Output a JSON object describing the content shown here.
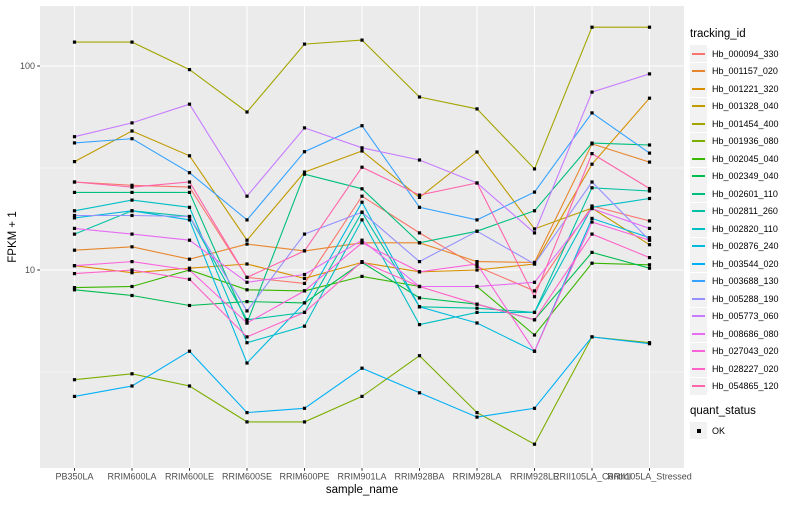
{
  "chart_data": {
    "type": "line",
    "title": "",
    "xlabel": "sample_name",
    "ylabel": "FPKM + 1",
    "y_scale": "log10",
    "ylim": [
      1.07,
      196
    ],
    "y_major_ticks": [
      {
        "value": 10,
        "label": "10"
      },
      {
        "value": 100,
        "label": "100"
      }
    ],
    "y_minor_ticks": [
      3.1623,
      31.623
    ],
    "grid": "on",
    "legend_position": "right",
    "marker": {
      "shape": "square",
      "color": "#000000"
    },
    "panel_background": "#EBEBEB",
    "grid_color": "#FFFFFF",
    "axis_text_color": "#4D4D4D",
    "categories": [
      "PB350LA",
      "RRIM600LA",
      "RRIM600LE",
      "RRIM600SE",
      "RRIM600PE",
      "RRIM901LA",
      "RRIM928BA",
      "RRIM928LA",
      "RRIM928LE",
      "RRII105LA_Control",
      "RRII105LA_Stressed"
    ],
    "legend": {
      "tracking_id_title": "tracking_id",
      "quant_status_title": "quant_status",
      "quant_status_items": [
        "OK"
      ]
    },
    "series": [
      {
        "name": "Hb_000094_330",
        "color": "#F8766D",
        "values": [
          27,
          26,
          25.5,
          9.2,
          8.6,
          23,
          15.2,
          10.4,
          7.9,
          20.6,
          17.4
        ]
      },
      {
        "name": "Hb_001157_020",
        "color": "#E8862D",
        "values": [
          12.5,
          13,
          11.3,
          13.4,
          12.4,
          13.6,
          13.6,
          11,
          10.9,
          41.5,
          33.8
        ]
      },
      {
        "name": "Hb_001221_320",
        "color": "#D89000",
        "values": [
          10.5,
          9.7,
          10.2,
          10.7,
          9.1,
          10.9,
          9.8,
          10,
          10.7,
          33,
          69.5
        ]
      },
      {
        "name": "Hb_001328_040",
        "color": "#C09B00",
        "values": [
          34,
          48,
          36.3,
          14,
          30.2,
          38.3,
          22.7,
          37.9,
          15.9,
          20.1,
          13.3
        ]
      },
      {
        "name": "Hb_001454_400",
        "color": "#A3A500",
        "values": [
          131,
          131,
          96,
          59.5,
          128,
          134,
          70.5,
          61.6,
          31.3,
          155,
          155
        ]
      },
      {
        "name": "Hb_001936_080",
        "color": "#7CAE00",
        "values": [
          2.9,
          3.1,
          2.7,
          1.8,
          1.8,
          2.4,
          3.8,
          2.0,
          1.4,
          4.7,
          4.4
        ]
      },
      {
        "name": "Hb_002045_040",
        "color": "#39B600",
        "values": [
          8.2,
          8.3,
          10,
          8,
          7.9,
          9.3,
          8.3,
          8.3,
          4.8,
          10.8,
          10.6
        ]
      },
      {
        "name": "Hb_002349_040",
        "color": "#00BB4E",
        "values": [
          8,
          7.5,
          6.7,
          7,
          6.9,
          10.9,
          7.3,
          6.8,
          5.7,
          12.2,
          10.2
        ]
      },
      {
        "name": "Hb_002601_110",
        "color": "#00BF7D",
        "values": [
          24,
          24,
          24,
          5.5,
          29.5,
          25,
          13.6,
          15.5,
          19.5,
          41.9,
          41
        ]
      },
      {
        "name": "Hb_002811_260",
        "color": "#00C1A3",
        "values": [
          15,
          19.5,
          18.3,
          5.7,
          6.2,
          19.2,
          6.6,
          6.5,
          6.2,
          25.3,
          24.4
        ]
      },
      {
        "name": "Hb_002820_110",
        "color": "#00BFC4",
        "values": [
          19.5,
          22,
          20.3,
          4.4,
          5.3,
          17.6,
          5.4,
          6.2,
          6.2,
          20.3,
          22.4
        ]
      },
      {
        "name": "Hb_002876_240",
        "color": "#00BAE0",
        "values": [
          18,
          19.5,
          17.6,
          3.5,
          6.9,
          21.5,
          6.6,
          5.5,
          4.0,
          17.9,
          14.4
        ]
      },
      {
        "name": "Hb_003544_020",
        "color": "#00B0F6",
        "values": [
          2.4,
          2.7,
          4.0,
          2.0,
          2.1,
          3.3,
          2.5,
          1.9,
          2.1,
          4.7,
          4.35
        ]
      },
      {
        "name": "Hb_003688_130",
        "color": "#35A2FF",
        "values": [
          42,
          44,
          30,
          17.6,
          38,
          51,
          20.3,
          17.6,
          24.1,
          58.9,
          37.4
        ]
      },
      {
        "name": "Hb_005288_190",
        "color": "#9590FF",
        "values": [
          18.5,
          18.5,
          18.3,
          6.3,
          15,
          19.2,
          11,
          15.5,
          10.7,
          27,
          14
        ]
      },
      {
        "name": "Hb_005773_060",
        "color": "#C77CFF",
        "values": [
          45,
          52.6,
          65,
          23,
          49.7,
          39.7,
          34.6,
          26.7,
          15.2,
          74.5,
          91.5
        ]
      },
      {
        "name": "Hb_008686_080",
        "color": "#E76BF3",
        "values": [
          16,
          15,
          14,
          8.7,
          9.5,
          14,
          8.3,
          8.3,
          8.7,
          20,
          16
        ]
      },
      {
        "name": "Hb_027043_020",
        "color": "#FA62DB",
        "values": [
          10.5,
          11,
          10,
          5.5,
          7.9,
          13.6,
          9.8,
          10.7,
          4.0,
          17.2,
          14
        ]
      },
      {
        "name": "Hb_028227_020",
        "color": "#FF61C9",
        "values": [
          9.6,
          10,
          9,
          4.7,
          6.2,
          11,
          8.3,
          6.8,
          5.7,
          15,
          11.5
        ]
      },
      {
        "name": "Hb_054865_120",
        "color": "#FF65AC",
        "values": [
          27,
          25.5,
          27,
          9.2,
          12.4,
          31.9,
          23.3,
          26.7,
          7.4,
          37.2,
          25.1
        ]
      }
    ]
  }
}
